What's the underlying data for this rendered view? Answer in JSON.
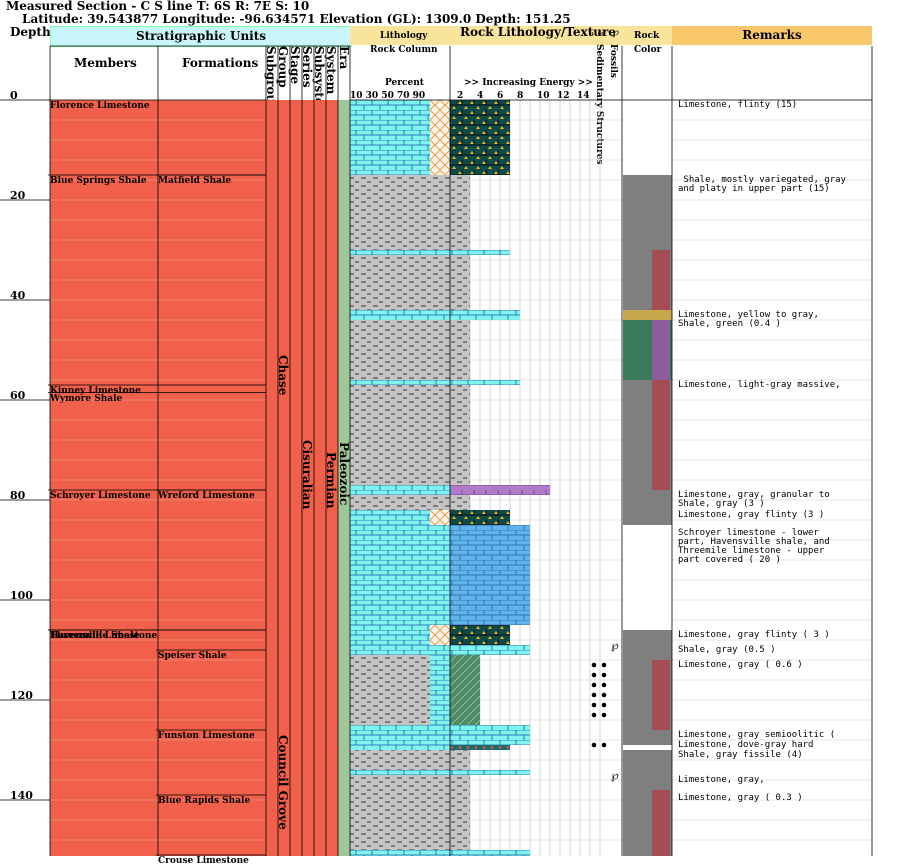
{
  "header": {
    "title": "Measured Section - C S line   T: 6S R: 7E S: 10",
    "subtitle": "Latitude: 39.543877 Longitude: -96.634571 Elevation (GL): 1309.0 Depth: 151.25"
  },
  "columns": {
    "depth": "Depth",
    "strat_units": "Stratigraphic Units",
    "members": "Members",
    "formations": "Formations",
    "subgroup": "Subgroup",
    "group": "Group",
    "stage": "Stage",
    "series": "Series",
    "subsystem": "Subsystem",
    "system": "System",
    "era": "Era",
    "lithology": "Lithology",
    "rock_column": "Rock Column",
    "percent": "Percent",
    "percent_ticks": "10  30  50  70  90",
    "rock_litho": "Rock Lithology/Texture",
    "energy": ">> Increasing Energy >>",
    "energy_ticks": [
      "2",
      "4",
      "6",
      "8",
      "10",
      "12",
      "14"
    ],
    "sed_structures": "Sedimentary Structures",
    "fossils": "Fossils",
    "rock_color_1": "Rock",
    "rock_color_2": "Color",
    "remarks": "Remarks"
  },
  "depth_labels": [
    {
      "value": 0,
      "label": "0"
    },
    {
      "value": 20,
      "label": "20"
    },
    {
      "value": 40,
      "label": "40"
    },
    {
      "value": 60,
      "label": "60"
    },
    {
      "value": 80,
      "label": "80"
    },
    {
      "value": 100,
      "label": "100"
    },
    {
      "value": 120,
      "label": "120"
    },
    {
      "value": 140,
      "label": "140"
    }
  ],
  "members": [
    {
      "name": "Florence Limestone",
      "top": 0
    },
    {
      "name": "Blue Springs Shale",
      "top": 15
    },
    {
      "name": "Kinney Limestone",
      "top": 57
    },
    {
      "name": "Wymore Shale",
      "top": 58.5
    },
    {
      "name": "Schroyer Limestone",
      "top": 78
    },
    {
      "name": "Havensville Shale",
      "top": 106
    },
    {
      "name": "Threemile Limestone",
      "top": 106
    }
  ],
  "formations": [
    {
      "name": "Matfield Shale",
      "top": 15
    },
    {
      "name": "Wreford Limestone",
      "top": 78
    },
    {
      "name": "Speiser Shale",
      "top": 110
    },
    {
      "name": "Funston Limestone",
      "top": 126
    },
    {
      "name": "Blue Rapids Shale",
      "top": 139
    },
    {
      "name": "Crouse Limestone",
      "top": 151
    }
  ],
  "groups": [
    {
      "name": "Chase",
      "top": 0,
      "bottom": 110
    },
    {
      "name": "Council Grove",
      "top": 110,
      "bottom": 152
    }
  ],
  "series_name": "Cisuralian",
  "system_name": "Permian",
  "era_name": "Paleozoic",
  "remarks": [
    {
      "depth": 0,
      "text": "Limestone, flinty (15)"
    },
    {
      "depth": 15,
      "text": " Shale, mostly variegated, gray\nand platy in upper part (15)"
    },
    {
      "depth": 42,
      "text": "Limestone, yellow to gray,\nShale, green (0.4 )"
    },
    {
      "depth": 56,
      "text": "Limestone, light-gray massive,"
    },
    {
      "depth": 78,
      "text": "Limestone, gray, granular to\nShale, gray (3 )"
    },
    {
      "depth": 82,
      "text": "Limestone, gray flinty (3 )"
    },
    {
      "depth": 85.5,
      "text": "Schroyer limestone - lower\npart, Havensville shale, and\nThreemile limestone - upper\npart covered ( 20 )"
    },
    {
      "depth": 106,
      "text": "Limestone, gray flinty ( 3 )"
    },
    {
      "depth": 109,
      "text": "Shale, gray (0.5 )"
    },
    {
      "depth": 112,
      "text": "Limestone, gray ( 0.6 )"
    },
    {
      "depth": 126,
      "text": "Limestone, gray semioolitic ("
    },
    {
      "depth": 128,
      "text": "Limestone, dove-gray hard"
    },
    {
      "depth": 130,
      "text": "Shale, gray fissile (4)"
    },
    {
      "depth": 135,
      "text": "Limestone, gray,"
    },
    {
      "depth": 138.5,
      "text": "Limestone, gray ( 0.3 )"
    }
  ],
  "rock_colors": [
    {
      "top": 15,
      "bottom": 30,
      "color": "#7f7f7f"
    },
    {
      "top": 30,
      "bottom": 42,
      "color": "#7f7f7f",
      "overlay": "#a54d55"
    },
    {
      "top": 42,
      "bottom": 44,
      "color": "#c8a84c"
    },
    {
      "top": 44,
      "bottom": 56,
      "color": "#3b7a5c",
      "overlay": "#8a5e9a"
    },
    {
      "top": 56,
      "bottom": 78,
      "color": "#7f7f7f",
      "overlay": "#a54d55"
    },
    {
      "top": 78,
      "bottom": 85,
      "color": "#7f7f7f"
    },
    {
      "top": 106,
      "bottom": 112,
      "color": "#7f7f7f"
    },
    {
      "top": 112,
      "bottom": 126,
      "color": "#7f7f7f",
      "overlay": "#a54d55"
    },
    {
      "top": 126,
      "bottom": 129,
      "color": "#7f7f7f"
    },
    {
      "top": 129,
      "bottom": 130,
      "color": "#ffffff"
    },
    {
      "top": 130,
      "bottom": 138,
      "color": "#7f7f7f"
    },
    {
      "top": 138,
      "bottom": 152,
      "color": "#7f7f7f",
      "overlay": "#a54d55"
    }
  ],
  "lithology": [
    {
      "top": 0,
      "bottom": 15,
      "kind": "limestone",
      "percent": 80,
      "secondary": "chert",
      "energy": 6,
      "texture": "grainstone"
    },
    {
      "top": 15,
      "bottom": 30,
      "kind": "shale",
      "percent": 100
    },
    {
      "top": 30,
      "bottom": 31,
      "kind": "limestone",
      "percent": 100,
      "energy": 6
    },
    {
      "top": 31,
      "bottom": 42,
      "kind": "shale",
      "percent": 100
    },
    {
      "top": 42,
      "bottom": 44,
      "kind": "limestone",
      "percent": 100,
      "energy": 7
    },
    {
      "top": 44,
      "bottom": 56,
      "kind": "shale",
      "percent": 100
    },
    {
      "top": 56,
      "bottom": 57,
      "kind": "limestone",
      "percent": 100,
      "energy": 7
    },
    {
      "top": 57,
      "bottom": 77,
      "kind": "shale",
      "percent": 100
    },
    {
      "top": 77,
      "bottom": 79,
      "kind": "limestone",
      "percent": 100,
      "energy": 10,
      "texture": "purple"
    },
    {
      "top": 79,
      "bottom": 82,
      "kind": "shale",
      "percent": 100
    },
    {
      "top": 82,
      "bottom": 85,
      "kind": "limestone",
      "percent": 80,
      "secondary": "chert",
      "energy": 6,
      "texture": "grainstone"
    },
    {
      "top": 85,
      "bottom": 105,
      "kind": "limestone",
      "percent": 100,
      "energy": 8,
      "texture": "blue"
    },
    {
      "top": 105,
      "bottom": 109,
      "kind": "limestone",
      "percent": 80,
      "secondary": "chert",
      "energy": 6,
      "texture": "grainstone"
    },
    {
      "top": 109,
      "bottom": 111,
      "kind": "limestone",
      "percent": 100,
      "energy": 8
    },
    {
      "top": 111,
      "bottom": 125,
      "kind": "shale_lime",
      "percent": 100,
      "energy": 3,
      "texture": "green"
    },
    {
      "top": 125,
      "bottom": 129,
      "kind": "limestone",
      "percent": 100,
      "energy": 8
    },
    {
      "top": 129,
      "bottom": 130,
      "kind": "limestone",
      "percent": 100,
      "energy": 6,
      "texture": "dots"
    },
    {
      "top": 130,
      "bottom": 134,
      "kind": "shale",
      "percent": 100
    },
    {
      "top": 134,
      "bottom": 135,
      "kind": "limestone",
      "percent": 100,
      "energy": 8
    },
    {
      "top": 135,
      "bottom": 150,
      "kind": "shale",
      "percent": 100
    },
    {
      "top": 150,
      "bottom": 152,
      "kind": "limestone",
      "percent": 100,
      "energy": 8
    }
  ],
  "fossils": [
    {
      "depth": 109,
      "kind": "crinoid"
    },
    {
      "depth": 113,
      "kind": "dots"
    },
    {
      "depth": 115,
      "kind": "dots"
    },
    {
      "depth": 117,
      "kind": "dots"
    },
    {
      "depth": 119,
      "kind": "dots"
    },
    {
      "depth": 121,
      "kind": "dots"
    },
    {
      "depth": 123,
      "kind": "dots"
    },
    {
      "depth": 129,
      "kind": "dots"
    },
    {
      "depth": 135,
      "kind": "crinoid"
    }
  ]
}
